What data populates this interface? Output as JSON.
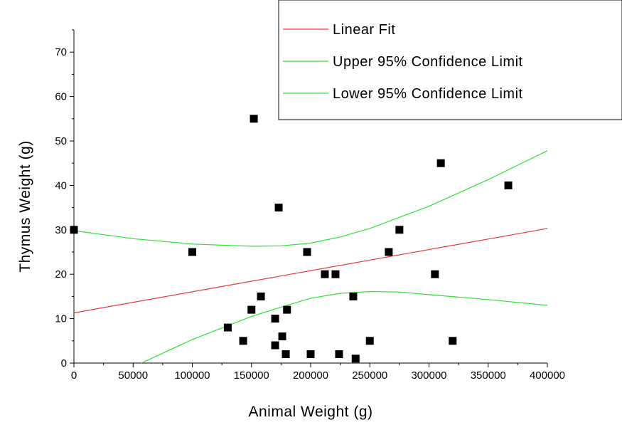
{
  "chart_data": {
    "type": "scatter",
    "xlabel": "Animal Weight (g)",
    "ylabel": "Thymus Weight (g)",
    "xlim": [
      0,
      400000
    ],
    "ylim": [
      0,
      75
    ],
    "x_ticks": [
      0,
      50000,
      100000,
      150000,
      200000,
      250000,
      300000,
      350000,
      400000
    ],
    "x_tick_labels": [
      "0",
      "50000",
      "100000",
      "150000",
      "200000",
      "250000",
      "300000",
      "350000",
      "400000"
    ],
    "y_ticks": [
      0,
      10,
      20,
      30,
      40,
      50,
      60,
      70
    ],
    "y_tick_labels": [
      "0",
      "10",
      "20",
      "30",
      "40",
      "50",
      "60",
      "70"
    ],
    "points": [
      {
        "x": 0,
        "y": 30
      },
      {
        "x": 100000,
        "y": 25
      },
      {
        "x": 130000,
        "y": 8
      },
      {
        "x": 143000,
        "y": 5
      },
      {
        "x": 150000,
        "y": 12
      },
      {
        "x": 152000,
        "y": 55
      },
      {
        "x": 158000,
        "y": 15
      },
      {
        "x": 170000,
        "y": 10
      },
      {
        "x": 170000,
        "y": 4
      },
      {
        "x": 173000,
        "y": 35
      },
      {
        "x": 176000,
        "y": 6
      },
      {
        "x": 179000,
        "y": 2
      },
      {
        "x": 180000,
        "y": 12
      },
      {
        "x": 197000,
        "y": 25
      },
      {
        "x": 200000,
        "y": 2
      },
      {
        "x": 212000,
        "y": 20
      },
      {
        "x": 221000,
        "y": 20
      },
      {
        "x": 224000,
        "y": 2
      },
      {
        "x": 236000,
        "y": 15
      },
      {
        "x": 238000,
        "y": 1
      },
      {
        "x": 250000,
        "y": 5
      },
      {
        "x": 266000,
        "y": 25
      },
      {
        "x": 275000,
        "y": 30
      },
      {
        "x": 305000,
        "y": 20
      },
      {
        "x": 310000,
        "y": 45
      },
      {
        "x": 320000,
        "y": 5
      },
      {
        "x": 367000,
        "y": 40
      }
    ],
    "fit": {
      "intercept": 11.3,
      "slope": 4.75e-05
    },
    "upper_ci": [
      {
        "x": 0,
        "y": 29.8
      },
      {
        "x": 50000,
        "y": 28
      },
      {
        "x": 100000,
        "y": 26.8
      },
      {
        "x": 150000,
        "y": 26.3
      },
      {
        "x": 175000,
        "y": 26.4
      },
      {
        "x": 200000,
        "y": 27
      },
      {
        "x": 225000,
        "y": 28.4
      },
      {
        "x": 250000,
        "y": 30.3
      },
      {
        "x": 300000,
        "y": 35.3
      },
      {
        "x": 350000,
        "y": 41.3
      },
      {
        "x": 400000,
        "y": 47.8
      }
    ],
    "lower_ci": [
      {
        "x": 57000,
        "y": 0
      },
      {
        "x": 100000,
        "y": 5.3
      },
      {
        "x": 150000,
        "y": 10.5
      },
      {
        "x": 175000,
        "y": 12.6
      },
      {
        "x": 200000,
        "y": 14.6
      },
      {
        "x": 225000,
        "y": 15.7
      },
      {
        "x": 250000,
        "y": 16.1
      },
      {
        "x": 275000,
        "y": 16
      },
      {
        "x": 300000,
        "y": 15.4
      },
      {
        "x": 350000,
        "y": 14.3
      },
      {
        "x": 400000,
        "y": 13
      }
    ],
    "series": [
      {
        "name": "Linear Fit",
        "color": "#e8383a"
      },
      {
        "name": "Upper 95% Confidence Limit",
        "color": "#32e132"
      },
      {
        "name": "Lower 95% Confidence Limit",
        "color": "#32e132"
      }
    ],
    "legend_position": "top-right",
    "grid": false,
    "marker_color": "#000000"
  }
}
